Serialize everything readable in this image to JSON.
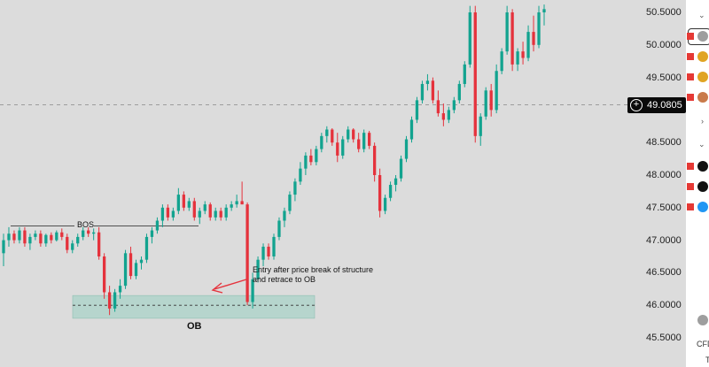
{
  "price_axis": {
    "labels": [
      "50.5000",
      "50.0000",
      "49.5000",
      "48.5000",
      "48.0000",
      "47.5000",
      "47.0000",
      "46.5000",
      "46.0000",
      "45.5000"
    ],
    "current_price": "49.0805"
  },
  "annotations": {
    "bos": "BOS",
    "entry_line1": "Entry after price break of structure",
    "entry_line2": "and retrace to OB",
    "ob": "OB"
  },
  "right_panel": {
    "cfd_text": "CFD",
    "cfd_sub": "T"
  },
  "colors": {
    "up": "#12a38f",
    "down": "#e5323c",
    "background": "#dcdcdc",
    "ob_zone": "#a9d3c8",
    "arrow": "#e5323c"
  },
  "chart_data": {
    "type": "candlestick",
    "ylim": [
      45.4,
      50.65
    ],
    "candles": [
      [
        46.8,
        47.1,
        46.6,
        47.0
      ],
      [
        47.0,
        47.2,
        46.9,
        47.1
      ],
      [
        47.1,
        47.15,
        46.95,
        47.0
      ],
      [
        47.0,
        47.2,
        46.95,
        47.15
      ],
      [
        47.15,
        47.2,
        46.9,
        46.95
      ],
      [
        46.95,
        47.1,
        46.85,
        47.05
      ],
      [
        47.05,
        47.15,
        47.0,
        47.1
      ],
      [
        47.1,
        47.15,
        46.9,
        46.95
      ],
      [
        46.95,
        47.1,
        46.9,
        47.08
      ],
      [
        47.08,
        47.12,
        46.95,
        47.0
      ],
      [
        47.0,
        47.15,
        46.98,
        47.12
      ],
      [
        47.12,
        47.18,
        47.0,
        47.05
      ],
      [
        47.05,
        47.1,
        46.8,
        46.85
      ],
      [
        46.85,
        47.0,
        46.8,
        46.95
      ],
      [
        46.95,
        47.1,
        46.9,
        47.05
      ],
      [
        47.05,
        47.2,
        47.0,
        47.15
      ],
      [
        47.15,
        47.2,
        47.05,
        47.1
      ],
      [
        47.1,
        47.18,
        47.0,
        47.12
      ],
      [
        47.12,
        47.2,
        46.7,
        46.75
      ],
      [
        46.75,
        46.8,
        46.1,
        46.2
      ],
      [
        46.2,
        46.3,
        45.85,
        45.95
      ],
      [
        45.95,
        46.25,
        45.9,
        46.2
      ],
      [
        46.2,
        46.4,
        46.1,
        46.3
      ],
      [
        46.3,
        46.85,
        46.25,
        46.8
      ],
      [
        46.8,
        46.9,
        46.4,
        46.45
      ],
      [
        46.45,
        46.7,
        46.4,
        46.65
      ],
      [
        46.65,
        46.75,
        46.55,
        46.7
      ],
      [
        46.7,
        47.1,
        46.65,
        47.05
      ],
      [
        47.05,
        47.2,
        46.95,
        47.15
      ],
      [
        47.15,
        47.35,
        47.1,
        47.3
      ],
      [
        47.3,
        47.55,
        47.2,
        47.5
      ],
      [
        47.5,
        47.55,
        47.3,
        47.35
      ],
      [
        47.35,
        47.5,
        47.3,
        47.45
      ],
      [
        47.45,
        47.8,
        47.4,
        47.7
      ],
      [
        47.7,
        47.75,
        47.45,
        47.5
      ],
      [
        47.5,
        47.65,
        47.45,
        47.6
      ],
      [
        47.6,
        47.65,
        47.3,
        47.35
      ],
      [
        47.35,
        47.5,
        47.25,
        47.45
      ],
      [
        47.45,
        47.6,
        47.4,
        47.55
      ],
      [
        47.55,
        47.58,
        47.3,
        47.35
      ],
      [
        47.35,
        47.5,
        47.3,
        47.45
      ],
      [
        47.45,
        47.5,
        47.3,
        47.35
      ],
      [
        47.35,
        47.55,
        47.3,
        47.5
      ],
      [
        47.5,
        47.6,
        47.45,
        47.55
      ],
      [
        47.55,
        47.7,
        47.5,
        47.6
      ],
      [
        47.6,
        47.9,
        47.55,
        47.55
      ],
      [
        47.55,
        47.58,
        46.0,
        46.05
      ],
      [
        46.05,
        46.5,
        45.95,
        46.4
      ],
      [
        46.4,
        46.75,
        46.35,
        46.7
      ],
      [
        46.7,
        46.95,
        46.6,
        46.9
      ],
      [
        46.9,
        46.95,
        46.7,
        46.75
      ],
      [
        46.75,
        47.1,
        46.7,
        47.05
      ],
      [
        47.05,
        47.35,
        47.0,
        47.3
      ],
      [
        47.3,
        47.5,
        47.2,
        47.45
      ],
      [
        47.45,
        47.75,
        47.4,
        47.7
      ],
      [
        47.7,
        47.95,
        47.6,
        47.9
      ],
      [
        47.9,
        48.2,
        47.85,
        48.1
      ],
      [
        48.1,
        48.35,
        48.0,
        48.3
      ],
      [
        48.3,
        48.4,
        48.15,
        48.2
      ],
      [
        48.2,
        48.45,
        48.15,
        48.4
      ],
      [
        48.4,
        48.65,
        48.35,
        48.6
      ],
      [
        48.6,
        48.75,
        48.5,
        48.7
      ],
      [
        48.7,
        48.72,
        48.45,
        48.5
      ],
      [
        48.5,
        48.65,
        48.2,
        48.3
      ],
      [
        48.3,
        48.6,
        48.25,
        48.55
      ],
      [
        48.55,
        48.75,
        48.5,
        48.7
      ],
      [
        48.7,
        48.72,
        48.5,
        48.55
      ],
      [
        48.55,
        48.65,
        48.35,
        48.4
      ],
      [
        48.4,
        48.7,
        48.35,
        48.65
      ],
      [
        48.65,
        48.68,
        48.4,
        48.45
      ],
      [
        48.45,
        48.5,
        47.9,
        48.0
      ],
      [
        48.0,
        48.1,
        47.35,
        47.45
      ],
      [
        47.45,
        47.7,
        47.4,
        47.65
      ],
      [
        47.65,
        47.9,
        47.6,
        47.85
      ],
      [
        47.85,
        48.0,
        47.75,
        47.95
      ],
      [
        47.95,
        48.3,
        47.9,
        48.25
      ],
      [
        48.25,
        48.6,
        48.2,
        48.55
      ],
      [
        48.55,
        48.9,
        48.5,
        48.85
      ],
      [
        48.85,
        49.2,
        48.8,
        49.15
      ],
      [
        49.15,
        49.45,
        49.1,
        49.4
      ],
      [
        49.4,
        49.55,
        49.3,
        49.45
      ],
      [
        49.45,
        49.5,
        49.1,
        49.15
      ],
      [
        49.15,
        49.3,
        48.9,
        48.95
      ],
      [
        48.95,
        49.1,
        48.75,
        48.85
      ],
      [
        48.85,
        49.05,
        48.8,
        49.0
      ],
      [
        49.0,
        49.2,
        48.95,
        49.15
      ],
      [
        49.15,
        49.45,
        49.1,
        49.4
      ],
      [
        49.4,
        49.75,
        49.35,
        49.7
      ],
      [
        49.7,
        50.6,
        49.65,
        50.5
      ],
      [
        50.5,
        50.6,
        48.5,
        48.6
      ],
      [
        48.6,
        48.95,
        48.45,
        48.9
      ],
      [
        48.9,
        49.35,
        48.85,
        49.3
      ],
      [
        49.3,
        49.4,
        48.9,
        49.0
      ],
      [
        49.0,
        49.7,
        48.95,
        49.6
      ],
      [
        49.6,
        49.95,
        49.55,
        49.9
      ],
      [
        49.9,
        50.6,
        49.85,
        50.5
      ],
      [
        50.5,
        50.55,
        49.6,
        49.7
      ],
      [
        49.7,
        49.95,
        49.6,
        49.9
      ],
      [
        49.9,
        50.05,
        49.7,
        49.8
      ],
      [
        49.8,
        50.3,
        49.75,
        50.2
      ],
      [
        50.2,
        50.45,
        49.9,
        50.0
      ],
      [
        50.0,
        50.6,
        49.95,
        50.5
      ],
      [
        50.5,
        50.62,
        50.3,
        50.55
      ]
    ],
    "zones": {
      "ob_box": {
        "y_top": 46.15,
        "y_bottom": 45.8
      },
      "ob_mid_line": 46.0,
      "bos_level": 47.22,
      "current_price_line": 49.08
    }
  }
}
